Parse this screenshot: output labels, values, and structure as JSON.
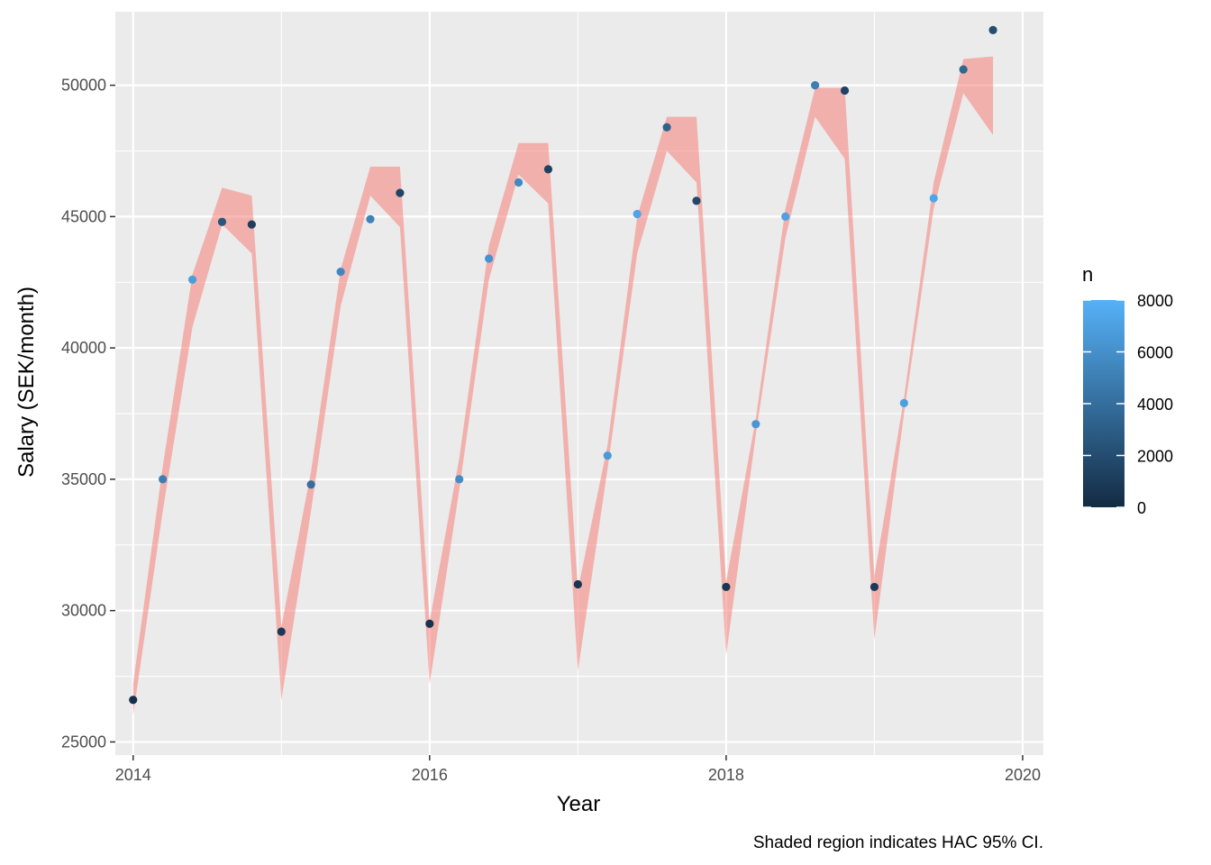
{
  "chart_data": {
    "type": "scatter",
    "title": "",
    "xlabel": "Year",
    "ylabel": "Salary (SEK/month)",
    "caption": "Shaded region indicates HAC 95% CI.",
    "xlim": [
      2013.88,
      2020.14
    ],
    "ylim": [
      24500,
      52800
    ],
    "x_ticks": [
      2014,
      2016,
      2018,
      2020
    ],
    "y_ticks": [
      25000,
      30000,
      35000,
      40000,
      45000,
      50000
    ],
    "grid": true,
    "legend": {
      "title": "n",
      "placement": "right",
      "scale": "continuous color",
      "range": [
        0,
        8000
      ],
      "ticks": [
        0,
        2000,
        4000,
        6000,
        8000
      ],
      "color_low": "#132B43",
      "color_high": "#56B1F7"
    },
    "ribbon_color": "#F8766D",
    "points": [
      {
        "x": 2014.0,
        "y": 26600,
        "n": 300
      },
      {
        "x": 2014.2,
        "y": 35000,
        "n": 5000
      },
      {
        "x": 2014.4,
        "y": 42600,
        "n": 6800
      },
      {
        "x": 2014.6,
        "y": 44800,
        "n": 2500
      },
      {
        "x": 2014.8,
        "y": 44700,
        "n": 1200
      },
      {
        "x": 2015.0,
        "y": 29200,
        "n": 800
      },
      {
        "x": 2015.2,
        "y": 34800,
        "n": 4000
      },
      {
        "x": 2015.4,
        "y": 42900,
        "n": 5500
      },
      {
        "x": 2015.6,
        "y": 44900,
        "n": 5200
      },
      {
        "x": 2015.8,
        "y": 45900,
        "n": 1500
      },
      {
        "x": 2016.0,
        "y": 29500,
        "n": 500
      },
      {
        "x": 2016.2,
        "y": 35000,
        "n": 5800
      },
      {
        "x": 2016.4,
        "y": 43400,
        "n": 6200
      },
      {
        "x": 2016.6,
        "y": 46300,
        "n": 5600
      },
      {
        "x": 2016.8,
        "y": 46800,
        "n": 1300
      },
      {
        "x": 2017.0,
        "y": 31000,
        "n": 600
      },
      {
        "x": 2017.2,
        "y": 35900,
        "n": 6600
      },
      {
        "x": 2017.4,
        "y": 45100,
        "n": 7200
      },
      {
        "x": 2017.6,
        "y": 48400,
        "n": 3300
      },
      {
        "x": 2017.8,
        "y": 45600,
        "n": 1700
      },
      {
        "x": 2018.0,
        "y": 30900,
        "n": 700
      },
      {
        "x": 2018.2,
        "y": 37100,
        "n": 6400
      },
      {
        "x": 2018.4,
        "y": 45000,
        "n": 7000
      },
      {
        "x": 2018.6,
        "y": 50000,
        "n": 5000
      },
      {
        "x": 2018.8,
        "y": 49800,
        "n": 1400
      },
      {
        "x": 2019.0,
        "y": 30900,
        "n": 900
      },
      {
        "x": 2019.2,
        "y": 37900,
        "n": 6900
      },
      {
        "x": 2019.4,
        "y": 45700,
        "n": 7300
      },
      {
        "x": 2019.6,
        "y": 50600,
        "n": 3500
      },
      {
        "x": 2019.8,
        "y": 52100,
        "n": 2000
      }
    ],
    "ribbon": [
      {
        "x": 2014.0,
        "lower": 26000,
        "upper": 27200
      },
      {
        "x": 2014.2,
        "lower": 33800,
        "upper": 35500
      },
      {
        "x": 2014.4,
        "lower": 40800,
        "upper": 42800
      },
      {
        "x": 2014.6,
        "lower": 44700,
        "upper": 46100
      },
      {
        "x": 2014.8,
        "lower": 43600,
        "upper": 45800
      },
      {
        "x": 2015.0,
        "lower": 26600,
        "upper": 29400
      },
      {
        "x": 2015.2,
        "lower": 33800,
        "upper": 35300
      },
      {
        "x": 2015.4,
        "lower": 41600,
        "upper": 43000
      },
      {
        "x": 2015.6,
        "lower": 45800,
        "upper": 46900
      },
      {
        "x": 2015.8,
        "lower": 44600,
        "upper": 46900
      },
      {
        "x": 2016.0,
        "lower": 27200,
        "upper": 29600
      },
      {
        "x": 2016.2,
        "lower": 34600,
        "upper": 35800
      },
      {
        "x": 2016.4,
        "lower": 42600,
        "upper": 43900
      },
      {
        "x": 2016.6,
        "lower": 46600,
        "upper": 47800
      },
      {
        "x": 2016.8,
        "lower": 45500,
        "upper": 47800
      },
      {
        "x": 2017.0,
        "lower": 27700,
        "upper": 30800
      },
      {
        "x": 2017.2,
        "lower": 35400,
        "upper": 36300
      },
      {
        "x": 2017.4,
        "lower": 43600,
        "upper": 45000
      },
      {
        "x": 2017.6,
        "lower": 47500,
        "upper": 48800
      },
      {
        "x": 2017.8,
        "lower": 46300,
        "upper": 48800
      },
      {
        "x": 2018.0,
        "lower": 28300,
        "upper": 31100
      },
      {
        "x": 2018.2,
        "lower": 36700,
        "upper": 37300
      },
      {
        "x": 2018.4,
        "lower": 44200,
        "upper": 45300
      },
      {
        "x": 2018.6,
        "lower": 48800,
        "upper": 49900
      },
      {
        "x": 2018.8,
        "lower": 47200,
        "upper": 49900
      },
      {
        "x": 2019.0,
        "lower": 28900,
        "upper": 31300
      },
      {
        "x": 2019.2,
        "lower": 37500,
        "upper": 38100
      },
      {
        "x": 2019.4,
        "lower": 45300,
        "upper": 46300
      },
      {
        "x": 2019.6,
        "lower": 49700,
        "upper": 51000
      },
      {
        "x": 2019.8,
        "lower": 48100,
        "upper": 51100
      }
    ]
  }
}
